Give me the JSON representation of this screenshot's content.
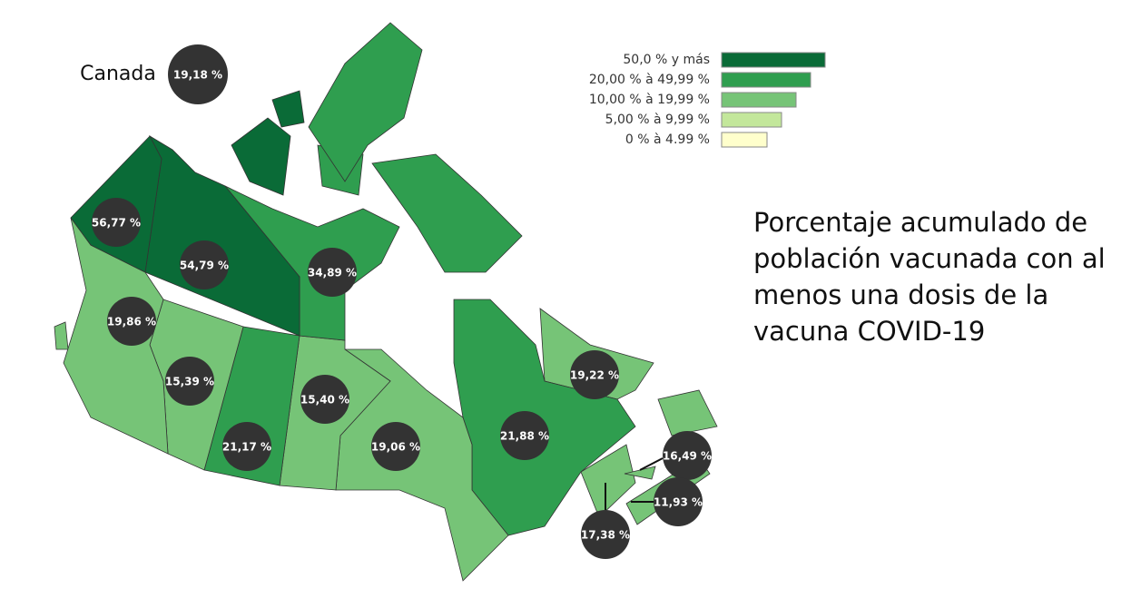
{
  "national": {
    "label": "Canada",
    "value_label": "19,18 %"
  },
  "title": "Porcentaje acumulado de población vacunada con al menos una dosis de la vacuna COVID-19",
  "legend": [
    {
      "label": "50,0 % y más",
      "color": "#0a6b37"
    },
    {
      "label": "20,00 % à 49,99 %",
      "color": "#2f9e4f"
    },
    {
      "label": "10,00 % à 19,99 %",
      "color": "#76c477"
    },
    {
      "label": "5,00 % à 9,99 %",
      "color": "#c3e79b"
    },
    {
      "label": "0 % à 4.99 %",
      "color": "#ffffcc"
    }
  ],
  "regions": [
    {
      "value_label": "56,77 %",
      "color": "#0a6b37"
    },
    {
      "value_label": "54,79 %",
      "color": "#0a6b37"
    },
    {
      "value_label": "34,89 %",
      "color": "#2f9e4f"
    },
    {
      "value_label": "19,86 %",
      "color": "#76c477"
    },
    {
      "value_label": "15,39 %",
      "color": "#76c477"
    },
    {
      "value_label": "21,17 %",
      "color": "#2f9e4f"
    },
    {
      "value_label": "15,40 %",
      "color": "#76c477"
    },
    {
      "value_label": "19,06 %",
      "color": "#76c477"
    },
    {
      "value_label": "21,88 %",
      "color": "#2f9e4f"
    },
    {
      "value_label": "19,22 %",
      "color": "#76c477"
    },
    {
      "value_label": "16,49 %",
      "color": "#76c477"
    },
    {
      "value_label": "11,93 %",
      "color": "#76c477"
    },
    {
      "value_label": "17,38 %",
      "color": "#76c477"
    }
  ]
}
